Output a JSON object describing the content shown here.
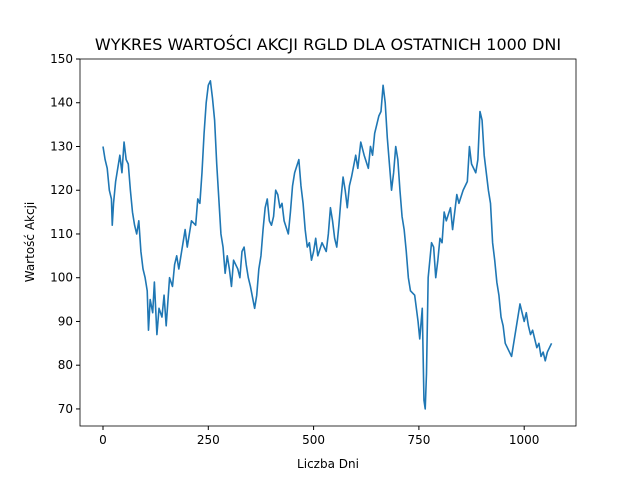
{
  "chart_data": {
    "type": "line",
    "title": "WYKRES WARTOŚCI AKCJI RGLD DLA OSTATNICH 1000 DNI",
    "x_label": "Liczba Dni",
    "y_label": "Wartość Akcji",
    "xlim": [
      -54.6,
      1123
    ],
    "ylim": [
      66.1,
      150
    ],
    "xticks": [
      0,
      250,
      500,
      750,
      1000
    ],
    "yticks": [
      70,
      80,
      90,
      100,
      110,
      120,
      130,
      140,
      150
    ],
    "series": [
      {
        "name": "RGLD",
        "color": "#1f77b4",
        "x": [
          0,
          5,
          10,
          15,
          20,
          22,
          25,
          30,
          35,
          40,
          45,
          50,
          55,
          60,
          65,
          70,
          75,
          80,
          85,
          90,
          95,
          100,
          105,
          108,
          112,
          118,
          122,
          128,
          133,
          140,
          145,
          150,
          158,
          165,
          170,
          175,
          180,
          190,
          195,
          200,
          210,
          220,
          225,
          230,
          235,
          240,
          245,
          250,
          255,
          260,
          265,
          270,
          275,
          280,
          285,
          290,
          295,
          300,
          305,
          310,
          320,
          325,
          330,
          335,
          340,
          345,
          350,
          360,
          365,
          370,
          375,
          380,
          385,
          390,
          395,
          400,
          405,
          410,
          415,
          420,
          425,
          430,
          440,
          445,
          450,
          455,
          465,
          470,
          475,
          480,
          485,
          490,
          495,
          500,
          505,
          510,
          520,
          530,
          535,
          540,
          545,
          550,
          555,
          560,
          565,
          570,
          575,
          580,
          585,
          590,
          600,
          605,
          612,
          620,
          630,
          635,
          640,
          645,
          655,
          660,
          665,
          670,
          675,
          680,
          685,
          690,
          695,
          700,
          705,
          710,
          715,
          720,
          725,
          730,
          740,
          748,
          752,
          758,
          762,
          765,
          768,
          772,
          780,
          785,
          790,
          795,
          800,
          805,
          810,
          815,
          825,
          830,
          835,
          840,
          845,
          855,
          865,
          870,
          875,
          885,
          890,
          895,
          900,
          905,
          910,
          915,
          920,
          925,
          930,
          935,
          940,
          945,
          950,
          955,
          960,
          965,
          970,
          975,
          980,
          985,
          990,
          995,
          1000,
          1005,
          1010,
          1015,
          1020,
          1025,
          1030,
          1035,
          1040,
          1045,
          1050,
          1055,
          1060,
          1065
        ],
        "values": [
          130,
          127,
          125,
          120,
          118,
          112,
          117,
          122,
          125,
          128,
          124,
          131,
          127,
          126,
          120,
          115,
          112,
          110,
          113,
          106,
          102,
          100,
          97,
          88,
          95,
          92,
          99,
          87,
          93,
          91,
          96,
          89,
          100,
          98,
          103,
          105,
          102,
          108,
          111,
          107,
          113,
          112,
          118,
          117,
          124,
          133,
          140,
          144,
          145,
          141,
          136,
          126,
          118,
          110,
          107,
          101,
          105,
          102,
          98,
          104,
          102,
          100,
          106,
          107,
          103,
          100,
          98,
          93,
          96,
          102,
          105,
          111,
          116,
          118,
          113,
          112,
          114,
          120,
          119,
          116,
          117,
          113,
          110,
          115,
          121,
          124,
          127,
          121,
          117,
          111,
          107,
          108,
          104,
          106,
          109,
          105,
          108,
          106,
          110,
          116,
          113,
          109,
          107,
          112,
          118,
          123,
          120,
          116,
          121,
          123,
          128,
          125,
          131,
          128,
          125,
          130,
          128,
          133,
          137,
          138,
          144,
          140,
          132,
          126,
          120,
          124,
          130,
          127,
          120,
          114,
          111,
          106,
          100,
          97,
          96,
          90,
          86,
          93,
          72,
          70,
          78,
          100,
          108,
          107,
          100,
          104,
          109,
          108,
          115,
          113,
          116,
          111,
          115,
          119,
          117,
          120,
          122,
          130,
          126,
          124,
          127,
          138,
          136,
          128,
          124,
          120,
          117,
          108,
          104,
          99,
          96,
          91,
          89,
          85,
          84,
          83,
          82,
          85,
          88,
          91,
          94,
          92,
          90,
          92,
          89,
          87,
          88,
          86,
          84,
          85,
          82,
          83,
          81,
          83,
          84,
          85
        ]
      }
    ]
  }
}
